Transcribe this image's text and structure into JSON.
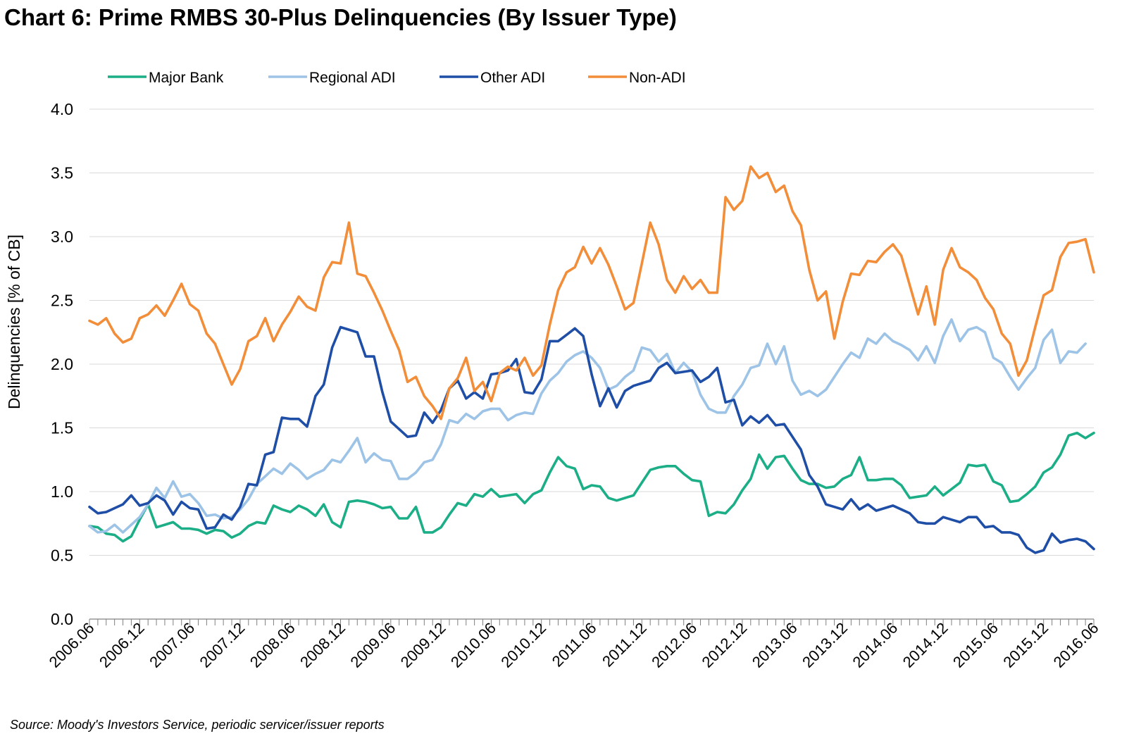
{
  "chart_data": {
    "type": "line",
    "title": "Chart 6: Prime RMBS 30-Plus Delinquencies (By Issuer Type)",
    "xlabel": "",
    "ylabel": "Delinquencies [% of CB]",
    "ylim": [
      0,
      4
    ],
    "yticks": [
      "0.0",
      "0.5",
      "1.0",
      "1.5",
      "2.0",
      "2.5",
      "3.0",
      "3.5",
      "4.0"
    ],
    "grid": true,
    "legend_position": "top-left",
    "x_tick_labels": [
      "2006.06",
      "2006.12",
      "2007.06",
      "2007.12",
      "2008.06",
      "2008.12",
      "2009.06",
      "2009.12",
      "2010.06",
      "2010.12",
      "2011.06",
      "2011.12",
      "2012.06",
      "2012.12",
      "2013.06",
      "2013.12",
      "2014.06",
      "2014.12",
      "2015.06",
      "2015.12",
      "2016.06"
    ],
    "period": "monthly, 2006.06 to 2016.06",
    "series": [
      {
        "name": "Major Bank",
        "color": "#1BAE87",
        "values": [
          0.73,
          0.72,
          0.67,
          0.66,
          0.61,
          0.65,
          0.78,
          0.9,
          0.72,
          0.74,
          0.76,
          0.71,
          0.71,
          0.7,
          0.67,
          0.7,
          0.69,
          0.64,
          0.67,
          0.73,
          0.76,
          0.75,
          0.89,
          0.86,
          0.84,
          0.89,
          0.86,
          0.81,
          0.9,
          0.76,
          0.72,
          0.92,
          0.93,
          0.92,
          0.9,
          0.87,
          0.88,
          0.79,
          0.79,
          0.88,
          0.68,
          0.68,
          0.72,
          0.82,
          0.91,
          0.89,
          0.98,
          0.96,
          1.02,
          0.96,
          0.97,
          0.98,
          0.91,
          0.98,
          1.01,
          1.15,
          1.27,
          1.2,
          1.18,
          1.02,
          1.05,
          1.04,
          0.95,
          0.93,
          0.95,
          0.97,
          1.07,
          1.17,
          1.19,
          1.2,
          1.2,
          1.14,
          1.09,
          1.08,
          0.81,
          0.84,
          0.83,
          0.9,
          1.01,
          1.1,
          1.29,
          1.18,
          1.27,
          1.28,
          1.18,
          1.09,
          1.06,
          1.06,
          1.03,
          1.04,
          1.1,
          1.13,
          1.27,
          1.09,
          1.09,
          1.1,
          1.1,
          1.05,
          0.95,
          0.96,
          0.97,
          1.04,
          0.97,
          1.02,
          1.07,
          1.21,
          1.2,
          1.21,
          1.08,
          1.05,
          0.92,
          0.93,
          0.98,
          1.04,
          1.15,
          1.19,
          1.29,
          1.44,
          1.46,
          1.42,
          1.46
        ]
      },
      {
        "name": "Regional ADI",
        "color": "#9DC3E6",
        "values": [
          0.73,
          0.68,
          0.69,
          0.74,
          0.68,
          0.74,
          0.8,
          0.9,
          1.03,
          0.95,
          1.08,
          0.96,
          0.98,
          0.91,
          0.81,
          0.82,
          0.79,
          0.8,
          0.86,
          0.94,
          1.06,
          1.12,
          1.18,
          1.14,
          1.22,
          1.17,
          1.1,
          1.14,
          1.17,
          1.25,
          1.23,
          1.32,
          1.42,
          1.23,
          1.3,
          1.25,
          1.24,
          1.1,
          1.1,
          1.15,
          1.23,
          1.25,
          1.37,
          1.56,
          1.54,
          1.61,
          1.57,
          1.63,
          1.65,
          1.65,
          1.56,
          1.6,
          1.62,
          1.61,
          1.77,
          1.87,
          1.93,
          2.02,
          2.07,
          2.1,
          2.05,
          1.97,
          1.8,
          1.83,
          1.9,
          1.95,
          2.13,
          2.11,
          2.02,
          2.08,
          1.93,
          2.01,
          1.94,
          1.76,
          1.65,
          1.62,
          1.62,
          1.75,
          1.84,
          1.97,
          1.99,
          2.16,
          2.0,
          2.14,
          1.87,
          1.76,
          1.79,
          1.75,
          1.8,
          1.9,
          2.0,
          2.09,
          2.05,
          2.2,
          2.16,
          2.24,
          2.18,
          2.15,
          2.11,
          2.03,
          2.14,
          2.01,
          2.22,
          2.35,
          2.18,
          2.27,
          2.29,
          2.25,
          2.05,
          2.01,
          1.9,
          1.8,
          1.89,
          1.97,
          2.19,
          2.27,
          2.01,
          2.1,
          2.09,
          2.16
        ]
      },
      {
        "name": "Other ADI",
        "color": "#1F4EA6",
        "values": [
          0.88,
          0.83,
          0.84,
          0.87,
          0.9,
          0.97,
          0.89,
          0.91,
          0.97,
          0.93,
          0.82,
          0.92,
          0.87,
          0.86,
          0.71,
          0.72,
          0.82,
          0.78,
          0.88,
          1.06,
          1.05,
          1.29,
          1.31,
          1.58,
          1.57,
          1.57,
          1.51,
          1.75,
          1.84,
          2.13,
          2.29,
          2.27,
          2.25,
          2.06,
          2.06,
          1.78,
          1.55,
          1.49,
          1.43,
          1.44,
          1.62,
          1.54,
          1.64,
          1.81,
          1.87,
          1.73,
          1.78,
          1.73,
          1.92,
          1.93,
          1.95,
          2.04,
          1.78,
          1.77,
          1.88,
          2.18,
          2.18,
          2.23,
          2.28,
          2.22,
          1.92,
          1.67,
          1.81,
          1.66,
          1.79,
          1.83,
          1.85,
          1.87,
          1.97,
          2.01,
          1.93,
          1.94,
          1.95,
          1.86,
          1.9,
          1.97,
          1.7,
          1.72,
          1.52,
          1.59,
          1.54,
          1.6,
          1.52,
          1.53,
          1.43,
          1.33,
          1.13,
          1.04,
          0.9,
          0.88,
          0.86,
          0.94,
          0.86,
          0.9,
          0.85,
          0.87,
          0.89,
          0.86,
          0.83,
          0.76,
          0.75,
          0.75,
          0.8,
          0.78,
          0.76,
          0.8,
          0.8,
          0.72,
          0.73,
          0.68,
          0.68,
          0.66,
          0.56,
          0.52,
          0.54,
          0.67,
          0.6,
          0.62,
          0.63,
          0.61,
          0.55
        ]
      },
      {
        "name": "Non-ADI",
        "color": "#F28E3A",
        "values": [
          2.34,
          2.31,
          2.36,
          2.24,
          2.17,
          2.2,
          2.36,
          2.39,
          2.46,
          2.38,
          2.5,
          2.63,
          2.47,
          2.42,
          2.24,
          2.16,
          2.0,
          1.84,
          1.96,
          2.18,
          2.22,
          2.36,
          2.18,
          2.31,
          2.41,
          2.53,
          2.45,
          2.42,
          2.68,
          2.8,
          2.79,
          3.11,
          2.71,
          2.69,
          2.56,
          2.42,
          2.26,
          2.11,
          1.86,
          1.9,
          1.75,
          1.67,
          1.57,
          1.81,
          1.89,
          2.05,
          1.79,
          1.86,
          1.71,
          1.93,
          1.98,
          1.95,
          2.05,
          1.91,
          1.99,
          2.31,
          2.58,
          2.72,
          2.76,
          2.92,
          2.79,
          2.91,
          2.78,
          2.61,
          2.43,
          2.48,
          2.79,
          3.11,
          2.94,
          2.66,
          2.56,
          2.69,
          2.59,
          2.66,
          2.56,
          2.56,
          3.31,
          3.21,
          3.28,
          3.55,
          3.46,
          3.5,
          3.35,
          3.4,
          3.2,
          3.09,
          2.74,
          2.5,
          2.57,
          2.2,
          2.49,
          2.71,
          2.7,
          2.81,
          2.8,
          2.88,
          2.94,
          2.85,
          2.62,
          2.39,
          2.61,
          2.31,
          2.74,
          2.91,
          2.76,
          2.72,
          2.66,
          2.52,
          2.43,
          2.24,
          2.16,
          1.91,
          2.03,
          2.29,
          2.54,
          2.58,
          2.84,
          2.95,
          2.96,
          2.98,
          2.72
        ]
      }
    ],
    "source": "Source: Moody's Investors Service, periodic servicer/issuer reports"
  }
}
